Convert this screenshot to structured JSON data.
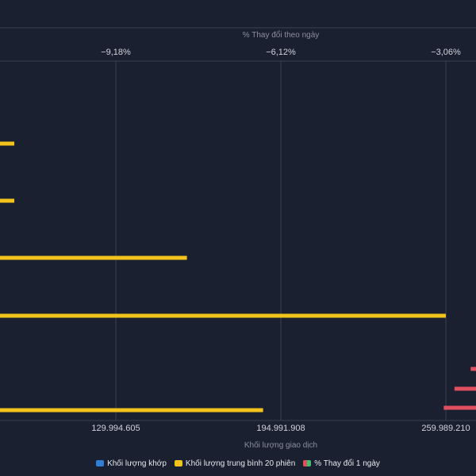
{
  "chart_data": {
    "type": "bar",
    "orientation": "horizontal",
    "top_axis": {
      "title": "% Thay đổi theo ngày",
      "tick_labels": [
        "−9,18%",
        "−6,12%",
        "−3,06%"
      ],
      "tick_values": [
        -9.18,
        -6.12,
        -3.06
      ]
    },
    "bottom_axis": {
      "title": "Khối lượng giao dịch",
      "tick_labels": [
        "129.994.605",
        "194.991.908",
        "259.989.210"
      ],
      "tick_values": [
        129994605,
        194991908,
        259989210
      ]
    },
    "series": [
      {
        "name": "Khối lượng khớp",
        "color": "#2f7fd6",
        "axis": "bottom",
        "values": []
      },
      {
        "name": "Khối lượng trung bình 20 phiên",
        "color": "#f2c31a",
        "axis": "bottom",
        "values": [
          90000000,
          90000000,
          158000000,
          260000000,
          188000000
        ]
      },
      {
        "name": "% Thay đổi 1 ngày",
        "colors": [
          "#e0505e",
          "#3fbf70"
        ],
        "axis": "top",
        "values": [
          -2.6,
          -2.9,
          -3.1
        ]
      }
    ],
    "grid": true,
    "legend_position": "bottom"
  },
  "colors": {
    "background": "#1b2030",
    "grid": "#3b4050",
    "volume_avg": "#f2c31a",
    "change_negative": "#e0505e"
  }
}
